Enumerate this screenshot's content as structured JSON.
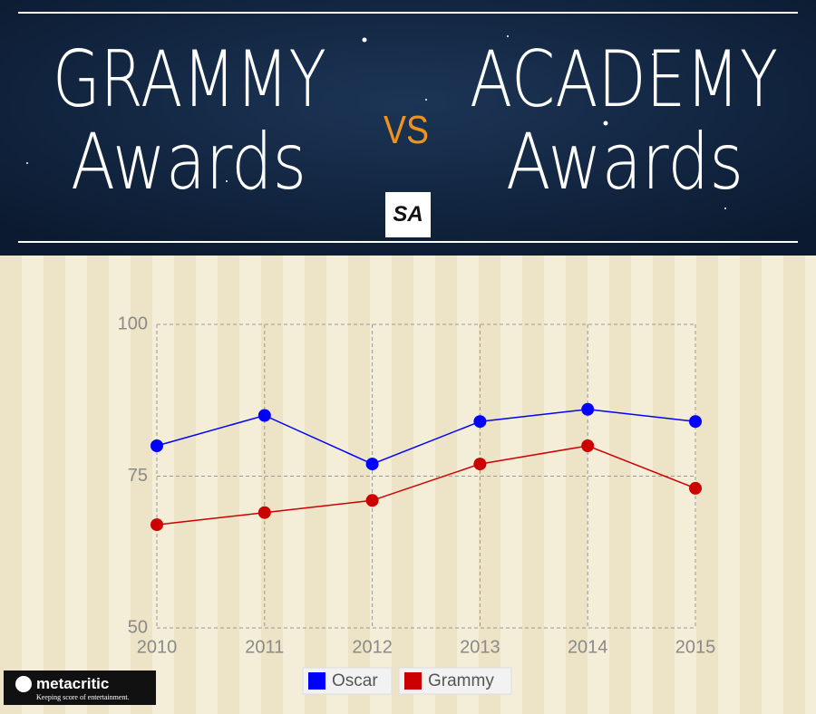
{
  "header": {
    "left": [
      "GRAMMY",
      "Awards"
    ],
    "vs": "VS",
    "right": [
      "ACADEMY",
      "Awards"
    ],
    "logo": "SA"
  },
  "chart_data": {
    "type": "line",
    "categories": [
      "2010",
      "2011",
      "2012",
      "2013",
      "2014",
      "2015"
    ],
    "series": [
      {
        "name": "Oscar",
        "color": "#0000ff",
        "values": [
          80,
          85,
          77,
          84,
          86,
          84
        ]
      },
      {
        "name": "Grammy",
        "color": "#cc0000",
        "values": [
          67,
          69,
          71,
          77,
          80,
          73
        ]
      }
    ],
    "ylim": [
      50,
      100
    ],
    "yticks": [
      50,
      75,
      100
    ],
    "grid": true,
    "legend": "bottom"
  },
  "footer": {
    "brand": "metacritic",
    "tagline": "Keeping score of entertainment."
  }
}
